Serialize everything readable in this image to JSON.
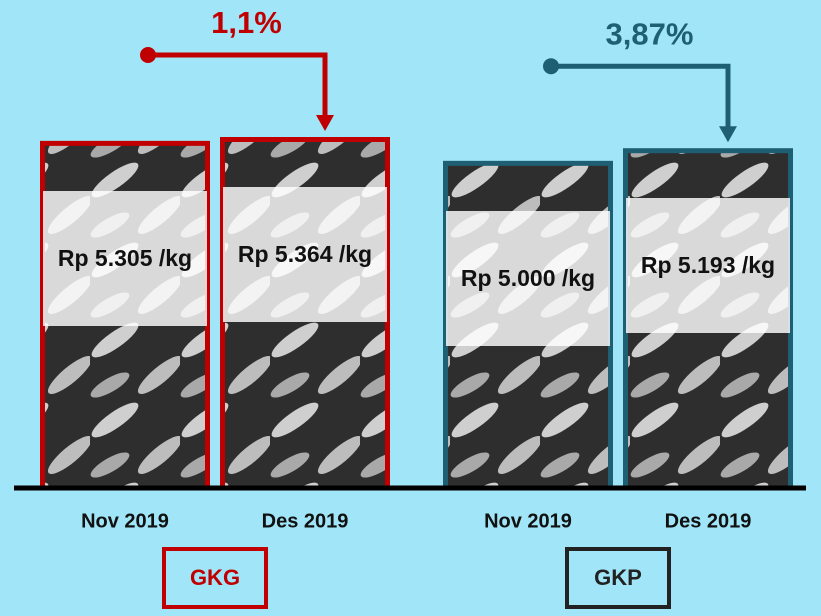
{
  "chart_data": {
    "type": "bar",
    "categories": [
      "Nov 2019",
      "Des 2019"
    ],
    "series": [
      {
        "name": "GKG",
        "color": "#c00000",
        "values": [
          5305,
          5364
        ],
        "value_labels": [
          "Rp 5.305 /kg",
          "Rp 5.364 /kg"
        ],
        "change": 1.1,
        "change_label": "1,1%"
      },
      {
        "name": "GKP",
        "color": "#1f5f73",
        "values": [
          5000,
          5193
        ],
        "value_labels": [
          "Rp 5.000 /kg",
          "Rp 5.193 /kg"
        ],
        "change": 3.87,
        "change_label": "3,87%"
      }
    ]
  }
}
